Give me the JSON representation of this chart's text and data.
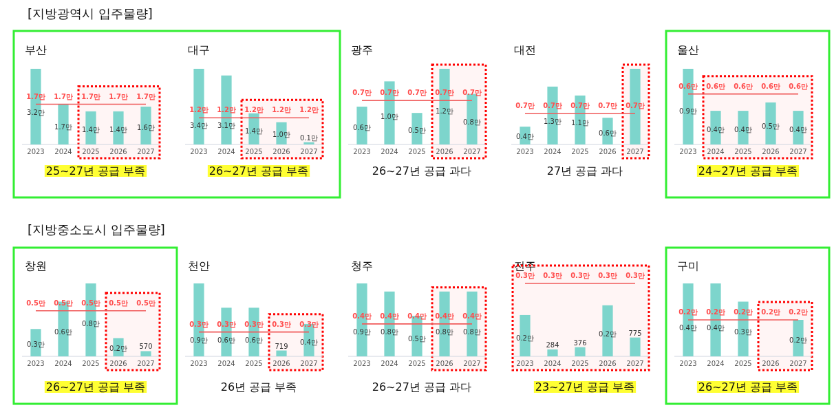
{
  "chart_data": [
    {
      "type": "bar",
      "title": "부산",
      "categories": [
        "2023",
        "2024",
        "2025",
        "2026",
        "2027"
      ],
      "series": [
        {
          "type": "bar",
          "color": "#7dd5cc",
          "values": [
            3.2,
            1.7,
            1.4,
            1.4,
            1.6
          ],
          "value_labels": [
            "3.2만",
            "1.7만",
            "1.4만",
            "1.4만",
            "1.6만"
          ]
        },
        {
          "type": "line",
          "color": "#f05a5a",
          "values": [
            1.7,
            1.7,
            1.7,
            1.7,
            1.7
          ],
          "value_labels": [
            "1.7만",
            "1.7만",
            "1.7만",
            "1.7만",
            "1.7만"
          ]
        }
      ],
      "bands": [
        {
          "axis": "x",
          "from": "2025",
          "to": "2027",
          "color": "#ff0000"
        }
      ],
      "annotations": [
        "[지방광역시 입주물량]",
        "25~27년 공급 부족"
      ]
    },
    {
      "type": "bar",
      "title": "대구",
      "categories": [
        "2023",
        "2024",
        "2025",
        "2026",
        "2027"
      ],
      "series": [
        {
          "type": "bar",
          "color": "#7dd5cc",
          "values": [
            3.4,
            3.1,
            1.4,
            1.0,
            0.1
          ],
          "value_labels": [
            "3.4만",
            "3.1만",
            "1.4만",
            "1.0만",
            "0.1만"
          ]
        },
        {
          "type": "line",
          "color": "#f05a5a",
          "values": [
            1.2,
            1.2,
            1.2,
            1.2,
            1.2
          ],
          "value_labels": [
            "1.2만",
            "1.2만",
            "1.2만",
            "1.2만",
            "1.2만"
          ]
        }
      ],
      "bands": [
        {
          "axis": "x",
          "from": "2025",
          "to": "2027",
          "color": "#ff0000"
        }
      ],
      "annotations": [
        "26~27년 공급 부족"
      ]
    },
    {
      "type": "bar",
      "title": "광주",
      "categories": [
        "2023",
        "2024",
        "2025",
        "2026",
        "2027"
      ],
      "series": [
        {
          "type": "bar",
          "color": "#7dd5cc",
          "values": [
            0.6,
            1.0,
            0.5,
            1.2,
            0.8
          ],
          "value_labels": [
            "0.6만",
            "1.0만",
            "0.5만",
            "1.2만",
            "0.8만"
          ]
        },
        {
          "type": "line",
          "color": "#f05a5a",
          "values": [
            0.7,
            0.7,
            0.7,
            0.7,
            0.7
          ],
          "value_labels": [
            "0.7만",
            "0.7만",
            "0.7만",
            "0.7만",
            "0.7만"
          ]
        }
      ],
      "bands": [
        {
          "axis": "x",
          "from": "2026",
          "to": "2027",
          "color": "#ff0000"
        }
      ],
      "annotations": [
        "26~27년 공급 과다"
      ]
    },
    {
      "type": "bar",
      "title": "대전",
      "categories": [
        "2023",
        "2024",
        "2025",
        "2026",
        "2027"
      ],
      "series": [
        {
          "type": "bar",
          "color": "#7dd5cc",
          "values": [
            0.4,
            1.3,
            1.1,
            0.6,
            1.7
          ],
          "value_labels": [
            "0.4만",
            "1.3만",
            "1.1만",
            "0.6만",
            null
          ]
        },
        {
          "type": "line",
          "color": "#f05a5a",
          "values": [
            0.7,
            0.7,
            0.7,
            0.7,
            0.7
          ],
          "value_labels": [
            "0.7만",
            "0.7만",
            "0.7만",
            "0.7만",
            "0.7만"
          ]
        }
      ],
      "bands": [
        {
          "axis": "x",
          "from": "2027",
          "to": "2027",
          "color": "#ff0000"
        }
      ],
      "annotations": [
        "27년 공급 과다"
      ]
    },
    {
      "type": "bar",
      "title": "울산",
      "categories": [
        "2023",
        "2024",
        "2025",
        "2026",
        "2027"
      ],
      "series": [
        {
          "type": "bar",
          "color": "#7dd5cc",
          "values": [
            0.9,
            0.4,
            0.4,
            0.5,
            0.4
          ],
          "value_labels": [
            "0.9만",
            "0.4만",
            "0.4만",
            "0.5만",
            "0.4만"
          ]
        },
        {
          "type": "line",
          "color": "#f05a5a",
          "values": [
            0.6,
            0.6,
            0.6,
            0.6,
            0.6
          ],
          "value_labels": [
            "0.6만",
            "0.6만",
            "0.6만",
            "0.6만",
            "0.6만"
          ]
        }
      ],
      "bands": [
        {
          "axis": "x",
          "from": "2024",
          "to": "2027",
          "color": "#ff0000"
        }
      ],
      "annotations": [
        "24~27년 공급 부족"
      ]
    },
    {
      "type": "bar",
      "title": "창원",
      "categories": [
        "2023",
        "2024",
        "2025",
        "2026",
        "2027"
      ],
      "series": [
        {
          "type": "bar",
          "color": "#7dd5cc",
          "values": [
            0.3,
            0.6,
            0.8,
            0.2,
            0.057
          ],
          "value_labels": [
            "0.3만",
            "0.6만",
            "0.8만",
            "0.2만",
            null
          ]
        },
        {
          "type": "line",
          "color": "#f05a5a",
          "values": [
            0.5,
            0.5,
            0.5,
            0.5,
            0.5
          ],
          "value_labels": [
            "0.5만",
            "0.5만",
            "0.5만",
            "0.5만",
            "0.5만"
          ]
        }
      ],
      "bands": [
        {
          "axis": "x",
          "from": "2026",
          "to": "2027",
          "color": "#ff0000"
        }
      ],
      "annotations": [
        "[지방중소도시 입주물량]",
        {
          "text": "570",
          "x": "2027",
          "y": 0.057
        },
        "26~27년 공급 부족"
      ]
    },
    {
      "type": "bar",
      "title": "천안",
      "categories": [
        "2023",
        "2024",
        "2025",
        "2026",
        "2027"
      ],
      "series": [
        {
          "type": "bar",
          "color": "#7dd5cc",
          "values": [
            0.9,
            0.6,
            0.6,
            0.0719,
            0.4
          ],
          "value_labels": [
            "0.9만",
            "0.6만",
            "0.6만",
            null,
            "0.4만"
          ]
        },
        {
          "type": "line",
          "color": "#f05a5a",
          "values": [
            0.3,
            0.3,
            0.3,
            0.3,
            0.3
          ],
          "value_labels": [
            "0.3만",
            "0.3만",
            "0.3만",
            "0.3만",
            "0.3만"
          ]
        }
      ],
      "bands": [
        {
          "axis": "x",
          "from": "2026",
          "to": "2027",
          "color": "#ff0000"
        }
      ],
      "annotations": [
        {
          "text": "719",
          "x": "2026",
          "y": 0.0719
        },
        "26년 공급 부족"
      ]
    },
    {
      "type": "bar",
      "title": "청주",
      "categories": [
        "2023",
        "2024",
        "2025",
        "2026",
        "2027"
      ],
      "series": [
        {
          "type": "bar",
          "color": "#7dd5cc",
          "values": [
            0.9,
            0.8,
            0.5,
            0.8,
            0.8
          ],
          "value_labels": [
            "0.9만",
            "0.8만",
            "0.5만",
            "0.8만",
            "0.8만"
          ]
        },
        {
          "type": "line",
          "color": "#f05a5a",
          "values": [
            0.4,
            0.4,
            0.4,
            0.4,
            0.4
          ],
          "value_labels": [
            "0.4만",
            "0.4만",
            "0.4만",
            "0.4만",
            "0.4만"
          ]
        }
      ],
      "bands": [
        {
          "axis": "x",
          "from": "2026",
          "to": "2027",
          "color": "#ff0000"
        }
      ],
      "annotations": [
        "26~27년 공급 과다"
      ]
    },
    {
      "type": "bar",
      "title": "전주",
      "categories": [
        "2023",
        "2024",
        "2025",
        "2026",
        "2027"
      ],
      "series": [
        {
          "type": "bar",
          "color": "#7dd5cc",
          "values": [
            0.17,
            0.0284,
            0.0376,
            0.21,
            0.0775
          ],
          "value_labels": [
            "0.2만",
            null,
            null,
            "0.2만",
            null
          ]
        },
        {
          "type": "line",
          "color": "#f05a5a",
          "values": [
            0.3,
            0.3,
            0.3,
            0.3,
            0.3
          ],
          "value_labels": [
            "0.3만",
            "0.3만",
            "0.3만",
            "0.3만",
            "0.3만"
          ]
        }
      ],
      "bands": [
        {
          "axis": "x",
          "from": "2023",
          "to": "2027",
          "color": "#ff0000"
        }
      ],
      "annotations": [
        {
          "text": "284",
          "x": "2024",
          "y": 0.0284
        },
        {
          "text": "376",
          "x": "2025",
          "y": 0.0376
        },
        {
          "text": "775",
          "x": "2027",
          "y": 0.0775
        },
        "23~27년 공급 부족"
      ]
    },
    {
      "type": "bar",
      "title": "구미",
      "categories": [
        "2023",
        "2024",
        "2025",
        "2026",
        "2027"
      ],
      "series": [
        {
          "type": "bar",
          "color": "#7dd5cc",
          "values": [
            0.4,
            0.4,
            0.3,
            null,
            0.2
          ],
          "value_labels": [
            "0.4만",
            "0.4만",
            "0.3만",
            null,
            "0.2만"
          ]
        },
        {
          "type": "line",
          "color": "#f05a5a",
          "values": [
            0.2,
            0.2,
            0.2,
            0.2,
            0.2
          ],
          "value_labels": [
            "0.2만",
            "0.2만",
            "0.2만",
            "0.2만",
            "0.2만"
          ]
        }
      ],
      "bands": [
        {
          "axis": "x",
          "from": "2026",
          "to": "2027",
          "color": "#ff0000"
        }
      ],
      "annotations": [
        "26~27년 공급 부족"
      ]
    }
  ]
}
